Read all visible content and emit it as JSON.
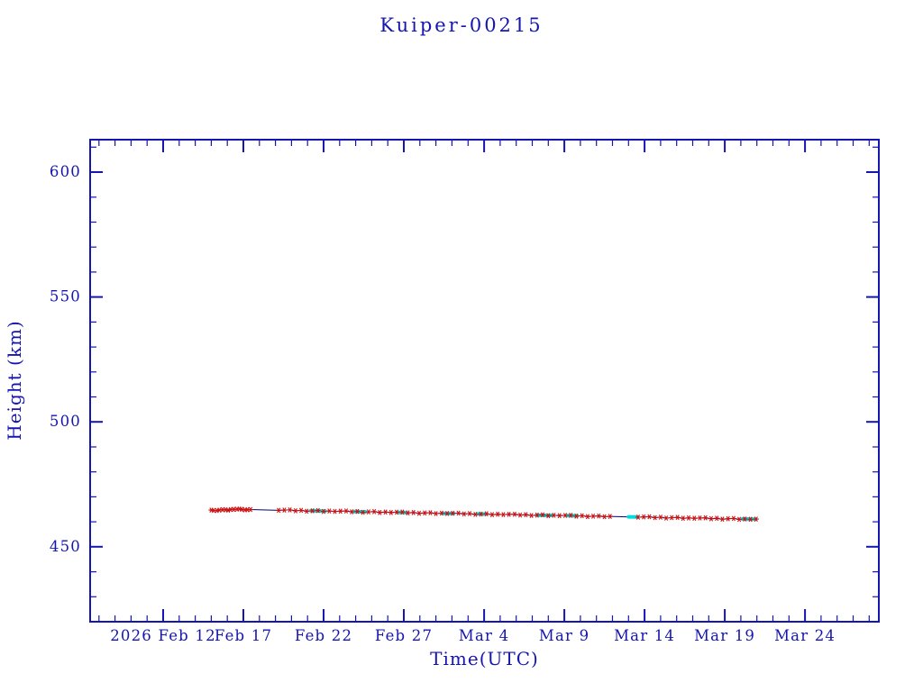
{
  "colors": {
    "background": "#ffffff",
    "axis_and_text": "#1515b0",
    "trend_line": "#000080",
    "marker_red": "#cc1111",
    "overlay_cyan": "#00dcdc"
  },
  "chart_data": {
    "type": "line",
    "title": "Kuiper-00215",
    "xlabel": "Time(UTC)",
    "ylabel": "Height (km)",
    "x_unit": "days since 2026 Feb 12 00:00 UTC",
    "xlim": [
      -4.55,
      44.6
    ],
    "ylim": [
      420,
      613
    ],
    "x_minor_step": 1,
    "x_major_step": 5,
    "y_minor_step": 10,
    "grid": false,
    "legend": "none",
    "x_ticks": [
      {
        "day": 0,
        "label": "2026 Feb 12"
      },
      {
        "day": 5,
        "label": "Feb 17"
      },
      {
        "day": 10,
        "label": "Feb 22"
      },
      {
        "day": 15,
        "label": "Feb 27"
      },
      {
        "day": 20,
        "label": "Mar 4"
      },
      {
        "day": 25,
        "label": "Mar 9"
      },
      {
        "day": 30,
        "label": "Mar 14"
      },
      {
        "day": 35,
        "label": "Mar 19"
      },
      {
        "day": 40,
        "label": "Mar 24"
      }
    ],
    "y_ticks": [
      450,
      500,
      550,
      600
    ],
    "series": [
      {
        "name": "measured-orbit-height",
        "marker": "asterisk",
        "color": "#cc1111",
        "line_color": "#000080",
        "points": [
          [
            3.0,
            464.7
          ],
          [
            3.15,
            464.55
          ],
          [
            3.35,
            464.52
          ],
          [
            3.5,
            464.68
          ],
          [
            3.7,
            464.83
          ],
          [
            3.9,
            464.8
          ],
          [
            4.05,
            464.65
          ],
          [
            4.2,
            464.9
          ],
          [
            4.4,
            464.97
          ],
          [
            4.6,
            465.05
          ],
          [
            4.75,
            465.12
          ],
          [
            4.9,
            465.0
          ],
          [
            5.1,
            464.77
          ],
          [
            5.25,
            464.85
          ],
          [
            5.45,
            464.92
          ],
          [
            7.2,
            464.6
          ],
          [
            7.55,
            464.71
          ],
          [
            7.9,
            464.77
          ],
          [
            8.25,
            464.42
          ],
          [
            8.6,
            464.58
          ],
          [
            8.95,
            464.24
          ],
          [
            9.3,
            464.4
          ],
          [
            9.65,
            464.5
          ],
          [
            10.0,
            464.16
          ],
          [
            10.35,
            464.32
          ],
          [
            10.7,
            464.17
          ],
          [
            11.05,
            464.28
          ],
          [
            11.4,
            464.34
          ],
          [
            11.75,
            464.0
          ],
          [
            12.1,
            464.15
          ],
          [
            12.45,
            463.81
          ],
          [
            12.8,
            463.97
          ],
          [
            13.15,
            464.07
          ],
          [
            13.5,
            463.73
          ],
          [
            13.85,
            463.89
          ],
          [
            14.2,
            463.74
          ],
          [
            14.55,
            463.85
          ],
          [
            14.9,
            463.91
          ],
          [
            15.25,
            463.57
          ],
          [
            15.6,
            463.72
          ],
          [
            15.95,
            463.38
          ],
          [
            16.3,
            463.54
          ],
          [
            16.65,
            463.64
          ],
          [
            17.0,
            463.3
          ],
          [
            17.35,
            463.46
          ],
          [
            17.7,
            463.32
          ],
          [
            18.05,
            463.42
          ],
          [
            18.4,
            463.48
          ],
          [
            18.75,
            463.14
          ],
          [
            19.1,
            463.29
          ],
          [
            19.45,
            462.95
          ],
          [
            19.8,
            463.11
          ],
          [
            20.15,
            463.22
          ],
          [
            20.5,
            462.87
          ],
          [
            20.85,
            463.03
          ],
          [
            21.2,
            462.89
          ],
          [
            21.55,
            462.99
          ],
          [
            21.9,
            463.05
          ],
          [
            22.25,
            462.71
          ],
          [
            22.6,
            462.87
          ],
          [
            22.95,
            462.52
          ],
          [
            23.3,
            462.68
          ],
          [
            23.65,
            462.79
          ],
          [
            24.0,
            462.44
          ],
          [
            24.35,
            462.6
          ],
          [
            24.7,
            462.46
          ],
          [
            25.05,
            462.57
          ],
          [
            25.4,
            462.62
          ],
          [
            25.75,
            462.28
          ],
          [
            26.1,
            462.44
          ],
          [
            26.45,
            462.09
          ],
          [
            26.8,
            462.25
          ],
          [
            27.15,
            462.36
          ],
          [
            27.5,
            462.01
          ],
          [
            27.85,
            462.17
          ],
          [
            29.6,
            461.86
          ],
          [
            29.95,
            461.96
          ],
          [
            30.3,
            462.02
          ],
          [
            30.65,
            461.68
          ],
          [
            31.0,
            461.83
          ],
          [
            31.35,
            461.49
          ],
          [
            31.7,
            461.65
          ],
          [
            32.05,
            461.76
          ],
          [
            32.4,
            461.41
          ],
          [
            32.75,
            461.57
          ],
          [
            33.1,
            461.43
          ],
          [
            33.45,
            461.53
          ],
          [
            33.8,
            461.59
          ],
          [
            34.15,
            461.25
          ],
          [
            34.5,
            461.4
          ],
          [
            34.85,
            461.06
          ],
          [
            35.2,
            461.22
          ],
          [
            35.55,
            461.33
          ],
          [
            35.9,
            460.98
          ],
          [
            36.25,
            461.14
          ],
          [
            36.6,
            461.0
          ],
          [
            36.95,
            461.1
          ]
        ]
      }
    ],
    "overlay": {
      "name": "cyan-highlight-segments",
      "color": "#00dcdc",
      "segments": [
        [
          9.2,
          464.41,
          10.1,
          464.3
        ],
        [
          11.9,
          464.08,
          12.6,
          463.99
        ],
        [
          14.6,
          463.75,
          15.15,
          463.68
        ],
        [
          17.4,
          463.4,
          18.1,
          463.32
        ],
        [
          19.6,
          463.13,
          20.1,
          463.07
        ],
        [
          23.3,
          462.68,
          24.2,
          462.57
        ],
        [
          25.2,
          462.45,
          25.8,
          462.37
        ],
        [
          29.0,
          461.98,
          29.55,
          461.91
        ],
        [
          36.1,
          461.11,
          36.9,
          461.01
        ]
      ]
    }
  }
}
